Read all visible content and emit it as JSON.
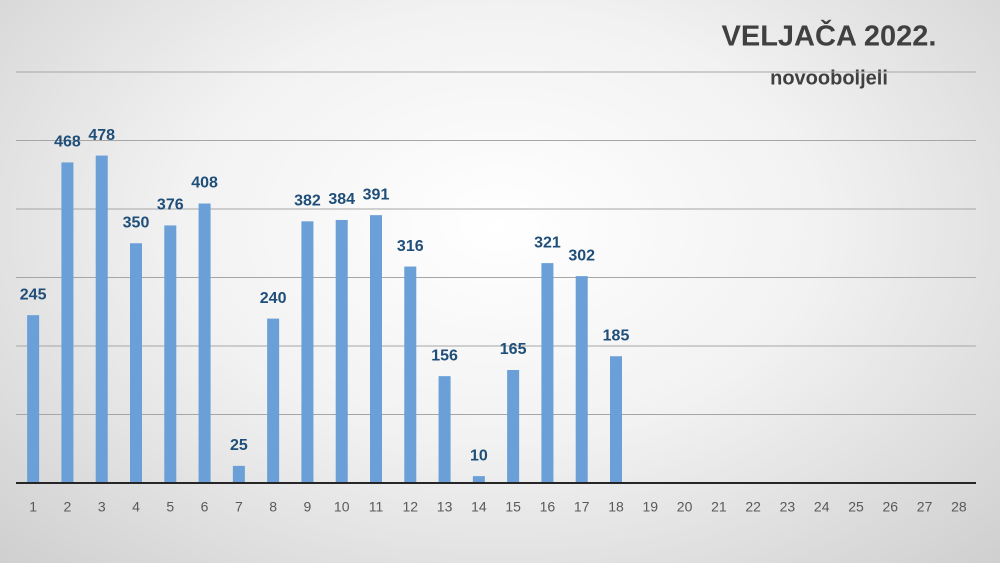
{
  "chart_data": {
    "type": "bar",
    "title": "VELJAČA 2022.",
    "subtitle": "novooboljeli",
    "categories": [
      "1",
      "2",
      "3",
      "4",
      "5",
      "6",
      "7",
      "8",
      "9",
      "10",
      "11",
      "12",
      "13",
      "14",
      "15",
      "16",
      "17",
      "18",
      "19",
      "20",
      "21",
      "22",
      "23",
      "24",
      "25",
      "26",
      "27",
      "28"
    ],
    "values": [
      245,
      468,
      478,
      350,
      376,
      408,
      25,
      240,
      382,
      384,
      391,
      316,
      156,
      10,
      165,
      321,
      302,
      185,
      null,
      null,
      null,
      null,
      null,
      null,
      null,
      null,
      null,
      null
    ],
    "color": "#6a9fd8",
    "label_color": "#1f4e79",
    "ylim": [
      0,
      600
    ],
    "yticks": [
      0,
      100,
      200,
      300,
      400,
      500,
      600
    ],
    "grid": true
  }
}
